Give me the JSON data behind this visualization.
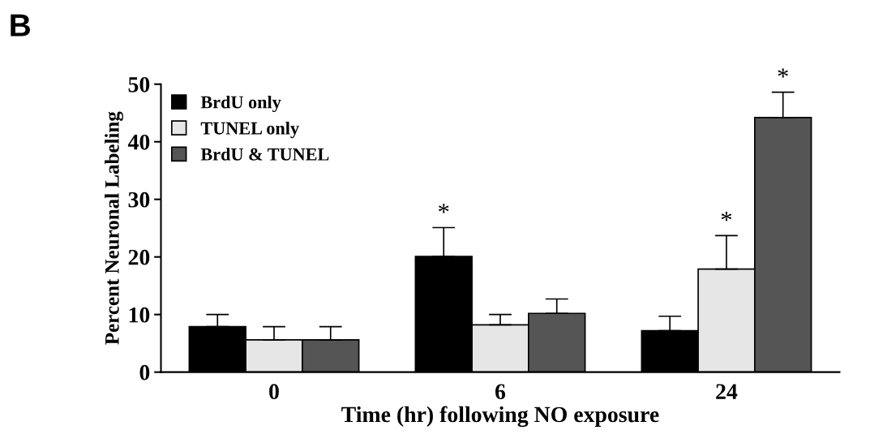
{
  "chart_data": {
    "type": "bar",
    "xlabel": "Time (hr) following NO exposure",
    "ylabel": "Percent Neuronal Labeling",
    "categories": [
      "0",
      "6",
      "24"
    ],
    "series": [
      {
        "name": "BrdU only",
        "color": "#000000",
        "values": [
          7.9,
          20.1,
          7.2
        ],
        "errors": [
          [
            7.9,
            10.0
          ],
          [
            20.1,
            25.1
          ],
          [
            7.2,
            9.7
          ]
        ],
        "value_labels": [
          null,
          "*",
          null
        ]
      },
      {
        "name": "TUNEL only",
        "color": "#e6e6e6",
        "values": [
          5.6,
          8.2,
          17.9
        ],
        "errors": [
          [
            5.6,
            7.9
          ],
          [
            8.2,
            10.0
          ],
          [
            17.9,
            23.7
          ]
        ],
        "value_labels": [
          null,
          null,
          "*"
        ]
      },
      {
        "name": "BrdU & TUNEL",
        "color": "#555555",
        "values": [
          5.6,
          10.2,
          44.2
        ],
        "errors": [
          [
            5.6,
            7.9
          ],
          [
            10.2,
            12.7
          ],
          [
            44.2,
            48.6
          ]
        ],
        "value_labels": [
          null,
          null,
          "*"
        ]
      }
    ],
    "ylim": [
      0,
      50
    ],
    "yticks": [
      0,
      10,
      20,
      30,
      40,
      50
    ],
    "grid": false,
    "legend": "top left",
    "annotations": [
      "B"
    ]
  }
}
